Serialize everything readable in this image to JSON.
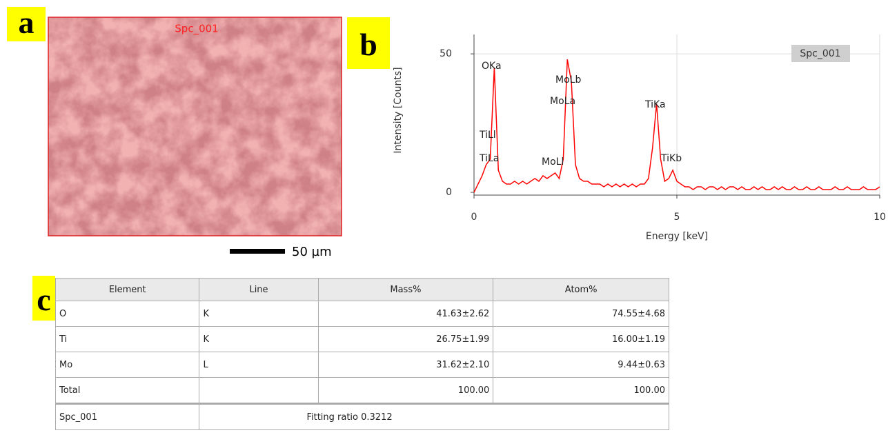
{
  "figure": {
    "panel_labels": [
      "a",
      "b",
      "c"
    ],
    "sem_image": {
      "label": "Spc_001",
      "scale_bar": "50 µm"
    }
  },
  "chart_data": {
    "type": "line",
    "xlabel": "Energy [keV]",
    "ylabel": "Intensity [Counts]",
    "xlim": [
      0,
      10
    ],
    "ylim": [
      0,
      57
    ],
    "xticks": [
      0,
      5,
      10
    ],
    "yticks": [
      0,
      50
    ],
    "grid": true,
    "legend": "upper right",
    "annotations": [
      "OKa",
      "MoLb",
      "MoLa",
      "TiKa",
      "TiLl",
      "TiLa",
      "MoLl",
      "TiKb"
    ],
    "x": [
      0,
      0.1,
      0.2,
      0.3,
      0.4,
      0.5,
      0.6,
      0.7,
      0.8,
      0.9,
      1,
      1.1,
      1.2,
      1.3,
      1.4,
      1.5,
      1.6,
      1.7,
      1.8,
      1.9,
      2,
      2.1,
      2.2,
      2.3,
      2.4,
      2.5,
      2.6,
      2.7,
      2.8,
      2.9,
      3,
      3.1,
      3.2,
      3.3,
      3.4,
      3.5,
      3.6,
      3.7,
      3.8,
      3.9,
      4,
      4.1,
      4.2,
      4.3,
      4.4,
      4.5,
      4.6,
      4.7,
      4.8,
      4.9,
      5,
      5.1,
      5.2,
      5.3,
      5.4,
      5.5,
      5.6,
      5.7,
      5.8,
      5.9,
      6,
      6.1,
      6.2,
      6.3,
      6.4,
      6.5,
      6.6,
      6.7,
      6.8,
      6.9,
      7,
      7.1,
      7.2,
      7.3,
      7.4,
      7.5,
      7.6,
      7.7,
      7.8,
      7.9,
      8,
      8.1,
      8.2,
      8.3,
      8.4,
      8.5,
      8.6,
      8.7,
      8.8,
      8.9,
      9,
      9.1,
      9.2,
      9.3,
      9.4,
      9.5,
      9.6,
      9.7,
      9.8,
      9.9,
      10
    ],
    "series": [
      {
        "name": "Spc_001",
        "color": "#ff0000",
        "values": [
          0,
          3,
          6,
          10,
          12,
          45,
          8,
          4,
          3,
          3,
          4,
          3,
          4,
          3,
          4,
          5,
          4,
          6,
          5,
          6,
          7,
          5,
          12,
          48,
          40,
          10,
          5,
          4,
          4,
          3,
          3,
          3,
          2,
          3,
          2,
          3,
          2,
          3,
          2,
          3,
          2,
          3,
          3,
          5,
          16,
          32,
          12,
          4,
          5,
          8,
          4,
          3,
          2,
          2,
          1,
          2,
          2,
          1,
          2,
          2,
          1,
          2,
          1,
          2,
          2,
          1,
          2,
          1,
          1,
          2,
          1,
          2,
          1,
          1,
          2,
          1,
          2,
          1,
          1,
          2,
          1,
          1,
          2,
          1,
          1,
          2,
          1,
          1,
          1,
          2,
          1,
          1,
          2,
          1,
          1,
          1,
          2,
          1,
          1,
          1,
          2
        ]
      }
    ]
  },
  "table": {
    "columns": [
      "Element",
      "Line",
      "Mass%",
      "Atom%"
    ],
    "rows": [
      [
        "O",
        "K",
        "41.63±2.62",
        "74.55±4.68"
      ],
      [
        "Ti",
        "K",
        "26.75±1.99",
        "16.00±1.19"
      ],
      [
        "Mo",
        "L",
        "31.62±2.10",
        "9.44±0.63"
      ],
      [
        "Total",
        null,
        "100.00",
        "100.00"
      ]
    ],
    "footer": [
      "Spc_001",
      "Fitting ratio 0.3212"
    ]
  }
}
